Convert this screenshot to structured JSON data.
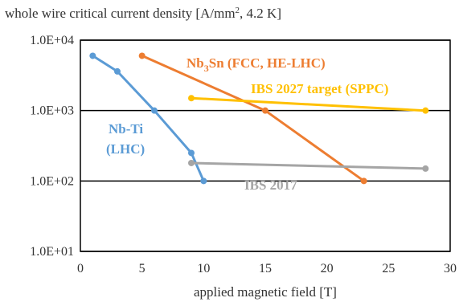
{
  "chart_data": {
    "type": "line",
    "title_text": "whole wire critical current density [A/mm",
    "title_sup": "2",
    "title_rest": ", 4.2 K]",
    "xlabel": "applied magnetic field [T]",
    "ylabel": "",
    "xlim": [
      0,
      30
    ],
    "ylim": [
      10,
      10000
    ],
    "yscale": "log",
    "grid": true,
    "x_ticks": [
      0,
      5,
      10,
      15,
      20,
      25,
      30
    ],
    "x_tick_labels": [
      "0",
      "5",
      "10",
      "15",
      "20",
      "25",
      "30"
    ],
    "y_ticks": [
      10,
      100,
      1000,
      10000
    ],
    "y_tick_labels": [
      "1.0E+01",
      "1.0E+02",
      "1.0E+03",
      "1.0E+04"
    ],
    "series": [
      {
        "key": "nbti",
        "name_line1": "Nb-Ti",
        "name_line2": "(LHC)",
        "color": "#5B9BD5",
        "x": [
          1,
          3,
          6,
          9,
          10
        ],
        "y": [
          6000,
          3600,
          1000,
          250,
          100
        ]
      },
      {
        "key": "nb3sn",
        "name_pre": "Nb",
        "name_sub": "3",
        "name_post": "Sn (FCC, HE-LHC)",
        "color": "#ED7D31",
        "x": [
          5,
          15,
          23
        ],
        "y": [
          6000,
          1000,
          100
        ]
      },
      {
        "key": "ibs2027",
        "name": "IBS 2027 target (SPPC)",
        "color": "#FFC000",
        "x": [
          9,
          28
        ],
        "y": [
          1500,
          1000
        ]
      },
      {
        "key": "ibs2017",
        "name": "IBS 2017",
        "color": "#A5A5A5",
        "x": [
          9,
          28
        ],
        "y": [
          180,
          150
        ]
      }
    ]
  }
}
